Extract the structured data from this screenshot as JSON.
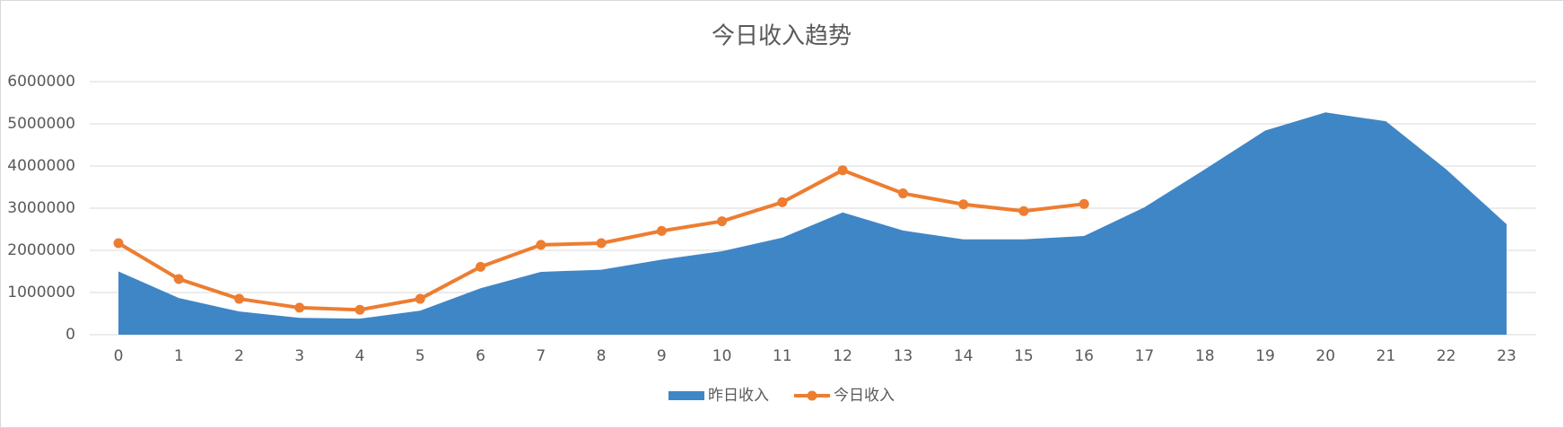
{
  "chart_data": {
    "type": "area_line",
    "title": "今日收入趋势",
    "categories": [
      0,
      1,
      2,
      3,
      4,
      5,
      6,
      7,
      8,
      9,
      10,
      11,
      12,
      13,
      14,
      15,
      16,
      17,
      18,
      19,
      20,
      21,
      22,
      23
    ],
    "series": [
      {
        "name": "昨日收入",
        "type": "area",
        "color": "#3f86c6",
        "values": [
          1500000,
          870000,
          550000,
          400000,
          380000,
          570000,
          1100000,
          1490000,
          1540000,
          1780000,
          1980000,
          2300000,
          2900000,
          2470000,
          2260000,
          2260000,
          2340000,
          3020000,
          3920000,
          4840000,
          5270000,
          5060000,
          3920000,
          2620000
        ]
      },
      {
        "name": "今日收入",
        "type": "line",
        "color": "#ed7d31",
        "values": [
          2170000,
          1320000,
          850000,
          640000,
          590000,
          850000,
          1610000,
          2130000,
          2170000,
          2460000,
          2690000,
          3140000,
          3900000,
          3350000,
          3090000,
          2930000,
          3100000,
          null,
          null,
          null,
          null,
          null,
          null,
          null
        ]
      }
    ],
    "ylim": [
      0,
      6000000
    ],
    "yticks": [
      0,
      1000000,
      2000000,
      3000000,
      4000000,
      5000000,
      6000000
    ],
    "grid": true,
    "legend": "bottom"
  }
}
